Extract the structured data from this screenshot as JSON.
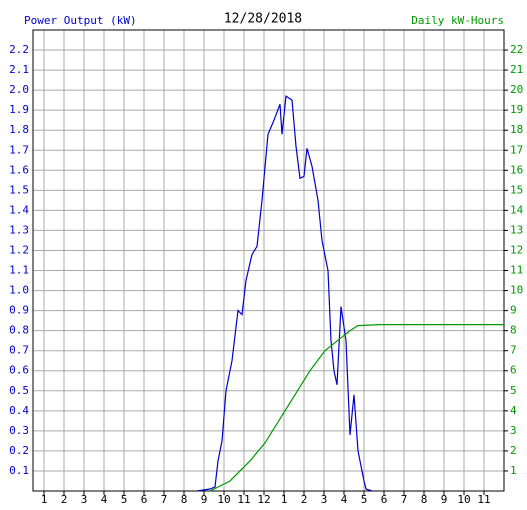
{
  "chart_data": {
    "type": "line",
    "title": "12/28/2018",
    "y_label": "Power Output (kW)",
    "y2_label": "Daily kW-Hours",
    "xlim": [
      0.45,
      24
    ],
    "xticks": [
      1,
      2,
      3,
      4,
      5,
      6,
      7,
      8,
      9,
      10,
      11,
      12,
      {
        "value": 13,
        "label": "1"
      },
      {
        "value": 14,
        "label": "2"
      },
      {
        "value": 15,
        "label": "3"
      },
      {
        "value": 16,
        "label": "4"
      },
      {
        "value": 17,
        "label": "5"
      },
      {
        "value": 18,
        "label": "6"
      },
      {
        "value": 19,
        "label": "7"
      },
      {
        "value": 20,
        "label": "8"
      },
      {
        "value": 21,
        "label": "9"
      },
      {
        "value": 22,
        "label": "10"
      },
      {
        "value": 23,
        "label": "11"
      }
    ],
    "ylim": [
      0,
      2.3
    ],
    "yticks": [
      0.1,
      0.2,
      0.3,
      0.4,
      0.5,
      0.6,
      0.7,
      0.8,
      0.9,
      {
        "value": 1,
        "label": "1.0"
      },
      1.1,
      1.2,
      1.3,
      1.4,
      1.5,
      1.6,
      1.7,
      1.8,
      1.9,
      {
        "value": 2,
        "label": "2.0"
      },
      2.1,
      2.2
    ],
    "y2lim": [
      0,
      23
    ],
    "y2ticks": [
      1,
      2,
      3,
      4,
      5,
      6,
      7,
      8,
      9,
      10,
      11,
      12,
      13,
      14,
      15,
      16,
      17,
      18,
      19,
      20,
      21,
      22
    ],
    "grid": true,
    "series": [
      {
        "name": "Power Output (kW)",
        "color": "#0000cc",
        "x": [
          8.65,
          9.3,
          9.55,
          9.7,
          9.9,
          10.1,
          10.4,
          10.7,
          10.9,
          11.1,
          11.4,
          11.65,
          11.9,
          12.2,
          12.5,
          12.8,
          12.9,
          13.1,
          13.4,
          13.6,
          13.8,
          14.0,
          14.15,
          14.4,
          14.7,
          14.9,
          15.2,
          15.35,
          15.5,
          15.65,
          15.85,
          16.1,
          16.3,
          16.5,
          16.7,
          17.0,
          17.1,
          17.4
        ],
        "values": [
          0,
          0.01,
          0.02,
          0.15,
          0.25,
          0.5,
          0.65,
          0.9,
          0.88,
          1.05,
          1.18,
          1.22,
          1.45,
          1.78,
          1.85,
          1.93,
          1.78,
          1.97,
          1.95,
          1.72,
          1.56,
          1.57,
          1.71,
          1.62,
          1.45,
          1.25,
          1.1,
          0.75,
          0.6,
          0.53,
          0.92,
          0.75,
          0.28,
          0.48,
          0.2,
          0.05,
          0.01,
          0
        ]
      },
      {
        "name": "Daily kW-Hours",
        "color": "#009900",
        "axis": "y2",
        "x": [
          9.3,
          10.3,
          11.3,
          12.05,
          13.05,
          13.8,
          14.3,
          15.05,
          15.8,
          16.3,
          16.7,
          17.8,
          24
        ],
        "values": [
          0,
          0.5,
          1.5,
          2.4,
          4.0,
          5.2,
          6.0,
          7.0,
          7.6,
          8.0,
          8.25,
          8.3,
          8.3
        ]
      }
    ]
  }
}
